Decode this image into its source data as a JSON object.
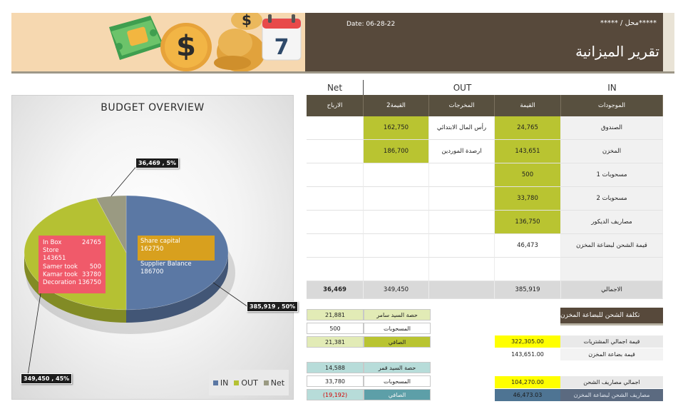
{
  "header": {
    "title": "تقرير الميزانية",
    "date": "Date: 06-28-22",
    "place": "*****محل / *****"
  },
  "chart_data": {
    "type": "pie",
    "title": "BUDGET OVERVIEW",
    "categories": [
      "IN",
      "OUT",
      "Net"
    ],
    "values": [
      385919,
      349450,
      36469
    ],
    "percents": [
      50,
      45,
      5
    ],
    "colors": [
      "#5b78a4",
      "#b5c133",
      "#9a9a82"
    ],
    "data_labels": [
      "385,919 , 50%",
      "349,450 , 45%",
      "36,469 , 5%"
    ],
    "legend": "bottom-right",
    "info_in": [
      {
        "label": "In Box",
        "value": "24765"
      },
      {
        "label": "Store",
        "value": ""
      },
      {
        "label": "143651",
        "value": ""
      },
      {
        "label": "Samer took",
        "value": "500"
      },
      {
        "label": "Kamar took",
        "value": "33780"
      },
      {
        "label": "Decoration",
        "value": "136750"
      }
    ],
    "info_out": [
      "Share capital",
      "162750",
      "Supplier Balance",
      "186700"
    ]
  },
  "table": {
    "group_in": "IN",
    "group_out": "OUT",
    "group_net": "Net",
    "col_assets": "الموجودات",
    "col_value": "القيمة",
    "col_outflows": "المخرجات",
    "col_value2": "القيمة2",
    "col_profit": "الارباح",
    "rows": [
      {
        "asset": "الصندوق",
        "value": "24,765",
        "out": "رأس المال الابتدائي",
        "out_value": "162,750",
        "profit": ""
      },
      {
        "asset": "المخزن",
        "value": "143,651",
        "out": "ارصدة الموردين",
        "out_value": "186,700",
        "profit": ""
      },
      {
        "asset": "مسحوبات 1",
        "value": "500",
        "out": "",
        "out_value": "",
        "profit": ""
      },
      {
        "asset": "مسحوبات 2",
        "value": "33,780",
        "out": "",
        "out_value": "",
        "profit": ""
      },
      {
        "asset": "مصاريف الديكور",
        "value": "136,750",
        "out": "",
        "out_value": "",
        "profit": ""
      },
      {
        "asset": "قيمة الشحن لبضاعة المخزن",
        "value": "46,473",
        "out": "",
        "out_value": "",
        "profit": ""
      },
      {
        "asset": "",
        "value": "",
        "out": "",
        "out_value": "",
        "profit": ""
      }
    ],
    "total": {
      "label": "الاجمالي",
      "in": "385,919",
      "out": "349,450",
      "net": "36,469"
    }
  },
  "share1": {
    "rows": [
      {
        "label": "حصة السيد سامر",
        "value": "21,881"
      },
      {
        "label": "المسحوبات",
        "value": "500"
      },
      {
        "label": "الصافي",
        "value": "21,381"
      }
    ]
  },
  "share2": {
    "rows": [
      {
        "label": "حصة السيد قمر",
        "value": "14,588"
      },
      {
        "label": "المسحوبات",
        "value": "33,780"
      },
      {
        "label": "الصافي",
        "value": "(19,192)"
      }
    ]
  },
  "shipping": {
    "title": "تكلفة الشحن للبضاعة المخزن",
    "rows": [
      {
        "label": "قيمة اجمالي المشتريات",
        "value": "322,305.00"
      },
      {
        "label": "قيمة بضاعة المخزن",
        "value": "143,651.00"
      },
      {
        "label": "اجمالي مصاريف الشحن",
        "value": "104,270.00"
      },
      {
        "label": "مصاريف الشحن لبضاعة المخزن",
        "value": "46,473.03"
      }
    ]
  }
}
